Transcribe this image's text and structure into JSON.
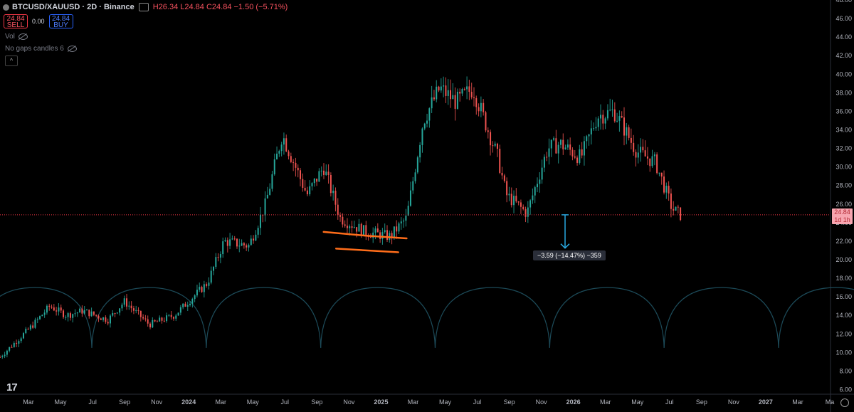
{
  "header": {
    "symbol_title": "BTCUSD/XAUUSD · 2D · Binance",
    "ohlc_text": "H26.34 L24.84 C24.84 −1.50 (−5.71%)"
  },
  "trade": {
    "sell_price": "24.84",
    "sell_label": "SELL",
    "spread": "0.00",
    "buy_price": "24.84",
    "buy_label": "BUY"
  },
  "indicators": {
    "vol_label": "Vol",
    "gaps_label": "No gaps candles 6"
  },
  "collapse_glyph": "^",
  "logo_text": "17",
  "price_tag": {
    "price": "24.84",
    "countdown": "1d 1h"
  },
  "measure_label": "−3.59 (−14.47%) −359",
  "colors": {
    "background": "#000000",
    "up": "#26a69a",
    "down": "#ef5350",
    "arc": "#1c4a58",
    "orange_marker": "#ff6d1a",
    "measure_arrow": "#29a8e0",
    "last_price_line": "#f23645"
  },
  "chart_data": {
    "type": "candlestick",
    "symbol": "BTCUSD/XAUUSD",
    "interval": "2D",
    "exchange": "Binance",
    "x_axis": {
      "tick_labels": [
        "Mar",
        "May",
        "Jul",
        "Sep",
        "Nov",
        "2024",
        "Mar",
        "May",
        "Jul",
        "Sep",
        "Nov",
        "2025",
        "Mar",
        "May",
        "Jul",
        "Sep",
        "Nov",
        "2026",
        "Mar",
        "May",
        "Jul",
        "Sep",
        "Nov",
        "2027",
        "Mar",
        "Ma"
      ]
    },
    "y_axis": {
      "ylim": [
        5.5,
        48
      ],
      "tick_labels": [
        "6.00",
        "8.00",
        "10.00",
        "12.00",
        "14.00",
        "16.00",
        "18.00",
        "20.00",
        "22.00",
        "24.00",
        "26.00",
        "28.00",
        "30.00",
        "32.00",
        "34.00",
        "36.00",
        "38.00",
        "40.00",
        "42.00",
        "44.00",
        "46.00",
        "48.00"
      ]
    },
    "last_price": 24.84,
    "anchors": {
      "x": [
        0.0,
        0.04,
        0.06,
        0.08,
        0.1,
        0.13,
        0.15,
        0.18,
        0.21,
        0.25,
        0.27,
        0.3,
        0.32,
        0.34,
        0.37,
        0.39,
        0.41,
        0.44,
        0.47,
        0.49,
        0.51,
        0.53,
        0.55,
        0.57,
        0.6,
        0.61,
        0.635,
        0.66,
        0.675,
        0.7,
        0.72,
        0.74,
        0.75,
        0.765,
        0.77,
        0.79,
        0.8,
        0.81,
        0.82
      ],
      "y": [
        9.5,
        13.0,
        15.0,
        14.0,
        14.5,
        13.5,
        15.5,
        13.0,
        14.0,
        17.5,
        22.0,
        21.5,
        26.0,
        33.5,
        27.0,
        30.0,
        24.5,
        23.0,
        22.5,
        24.5,
        35.0,
        38.5,
        37.0,
        38.5,
        31.0,
        27.0,
        25.0,
        32.0,
        32.5,
        31.0,
        35.5,
        36.0,
        34.5,
        32.0,
        31.5,
        30.5,
        28.0,
        25.5,
        24.84
      ]
    },
    "cycle_arcs": {
      "count": 8,
      "peak_value": 17.0,
      "base_value": 10.5
    },
    "annotations": [
      {
        "type": "orange-line",
        "start": [
          0.39,
          23.0
        ],
        "end": [
          0.44,
          22.6
        ]
      },
      {
        "type": "orange-line",
        "start": [
          0.44,
          22.6
        ],
        "end": [
          0.49,
          22.3
        ]
      },
      {
        "type": "orange-line",
        "start": [
          0.405,
          21.2
        ],
        "end": [
          0.48,
          20.8
        ]
      },
      {
        "type": "measure",
        "from_value": 24.84,
        "to_value": 21.25,
        "label": "−3.59 (−14.47%) −359"
      }
    ]
  }
}
